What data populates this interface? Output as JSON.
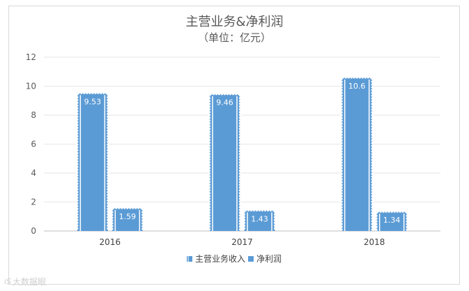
{
  "chart_data": {
    "type": "bar",
    "title": "主营业务&净利润",
    "subtitle": "（单位：亿元）",
    "categories": [
      "2016",
      "2017",
      "2018"
    ],
    "series": [
      {
        "name": "主营业务收入",
        "values": [
          9.53,
          9.46,
          10.6
        ],
        "labels": [
          "9.53",
          "9.46",
          "10.6"
        ],
        "color": "#5b9bd5"
      },
      {
        "name": "净利润",
        "values": [
          1.59,
          1.43,
          1.34
        ],
        "labels": [
          "1.59",
          "1.43",
          "1.34"
        ],
        "color": "#5b9bd5"
      }
    ],
    "yticks": [
      "0",
      "2",
      "4",
      "6",
      "8",
      "10",
      "12"
    ],
    "ylim": [
      0,
      12
    ],
    "grid": true,
    "legend": "bottom"
  },
  "watermark": {
    "logo": "iS",
    "text": "大数据眼"
  }
}
